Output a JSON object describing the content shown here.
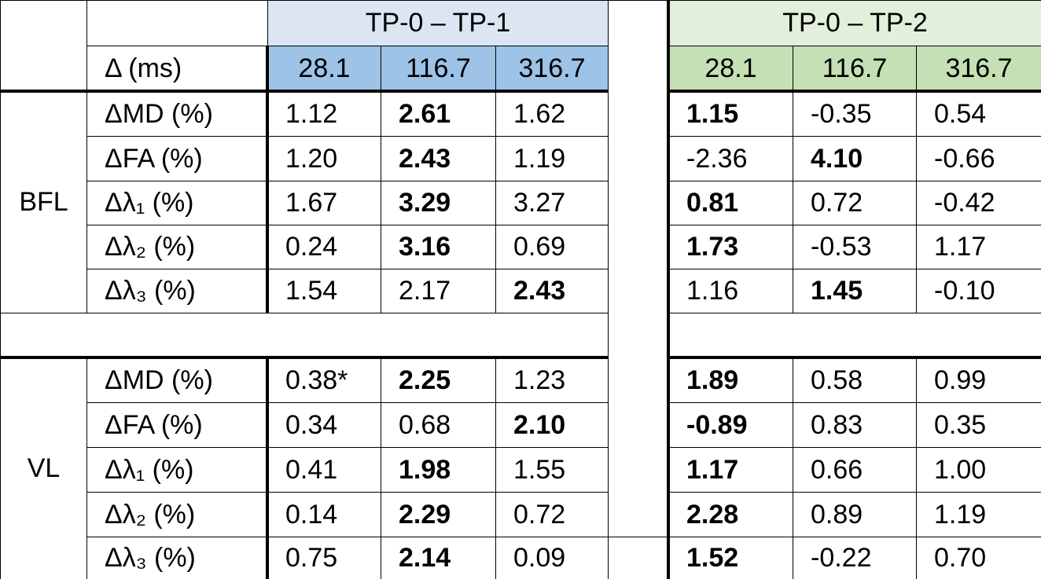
{
  "table": {
    "delta_label": "Δ (ms)",
    "tp1": {
      "title": "TP-0 – TP-1",
      "delta": [
        "28.1",
        "116.7",
        "316.7"
      ]
    },
    "tp2": {
      "title": "TP-0 – TP-2",
      "delta": [
        "28.1",
        "116.7",
        "316.7"
      ]
    },
    "groups": [
      {
        "name": "BFL",
        "rows": [
          {
            "label": "ΔMD (%)",
            "values": [
              "1.12",
              "2.61",
              "1.62",
              "1.15",
              "-0.35",
              "0.54"
            ],
            "bold": [
              1,
              3
            ]
          },
          {
            "label": "ΔFA (%)",
            "values": [
              "1.20",
              "2.43",
              "1.19",
              "-2.36",
              "4.10",
              "-0.66"
            ],
            "bold": [
              1,
              4
            ]
          },
          {
            "label": "Δλ₁ (%)",
            "values": [
              "1.67",
              "3.29",
              "3.27",
              "0.81",
              "0.72",
              "-0.42"
            ],
            "bold": [
              1,
              3
            ]
          },
          {
            "label": "Δλ₂ (%)",
            "values": [
              "0.24",
              "3.16",
              "0.69",
              "1.73",
              "-0.53",
              "1.17"
            ],
            "bold": [
              1,
              3
            ]
          },
          {
            "label": "Δλ₃ (%)",
            "values": [
              "1.54",
              "2.17",
              "2.43",
              "1.16",
              "1.45",
              "-0.10"
            ],
            "bold": [
              2,
              4
            ]
          }
        ]
      },
      {
        "name": "VL",
        "rows": [
          {
            "label": "ΔMD (%)",
            "values": [
              "0.38*",
              "2.25",
              "1.23",
              "1.89",
              "0.58",
              "0.99"
            ],
            "bold": [
              1,
              3
            ]
          },
          {
            "label": "ΔFA (%)",
            "values": [
              "0.34",
              "0.68",
              "2.10",
              "-0.89",
              "0.83",
              "0.35"
            ],
            "bold": [
              2,
              3
            ]
          },
          {
            "label": "Δλ₁ (%)",
            "values": [
              "0.41",
              "1.98",
              "1.55",
              "1.17",
              "0.66",
              "1.00"
            ],
            "bold": [
              1,
              3
            ]
          },
          {
            "label": "Δλ₂ (%)",
            "values": [
              "0.14",
              "2.29",
              "0.72",
              "2.28",
              "0.89",
              "1.19"
            ],
            "bold": [
              1,
              3
            ]
          },
          {
            "label": "Δλ₃ (%)",
            "values": [
              "0.75",
              "2.14",
              "0.09",
              "1.52",
              "-0.22",
              "0.70"
            ],
            "bold": [
              1,
              3
            ]
          }
        ]
      }
    ]
  }
}
